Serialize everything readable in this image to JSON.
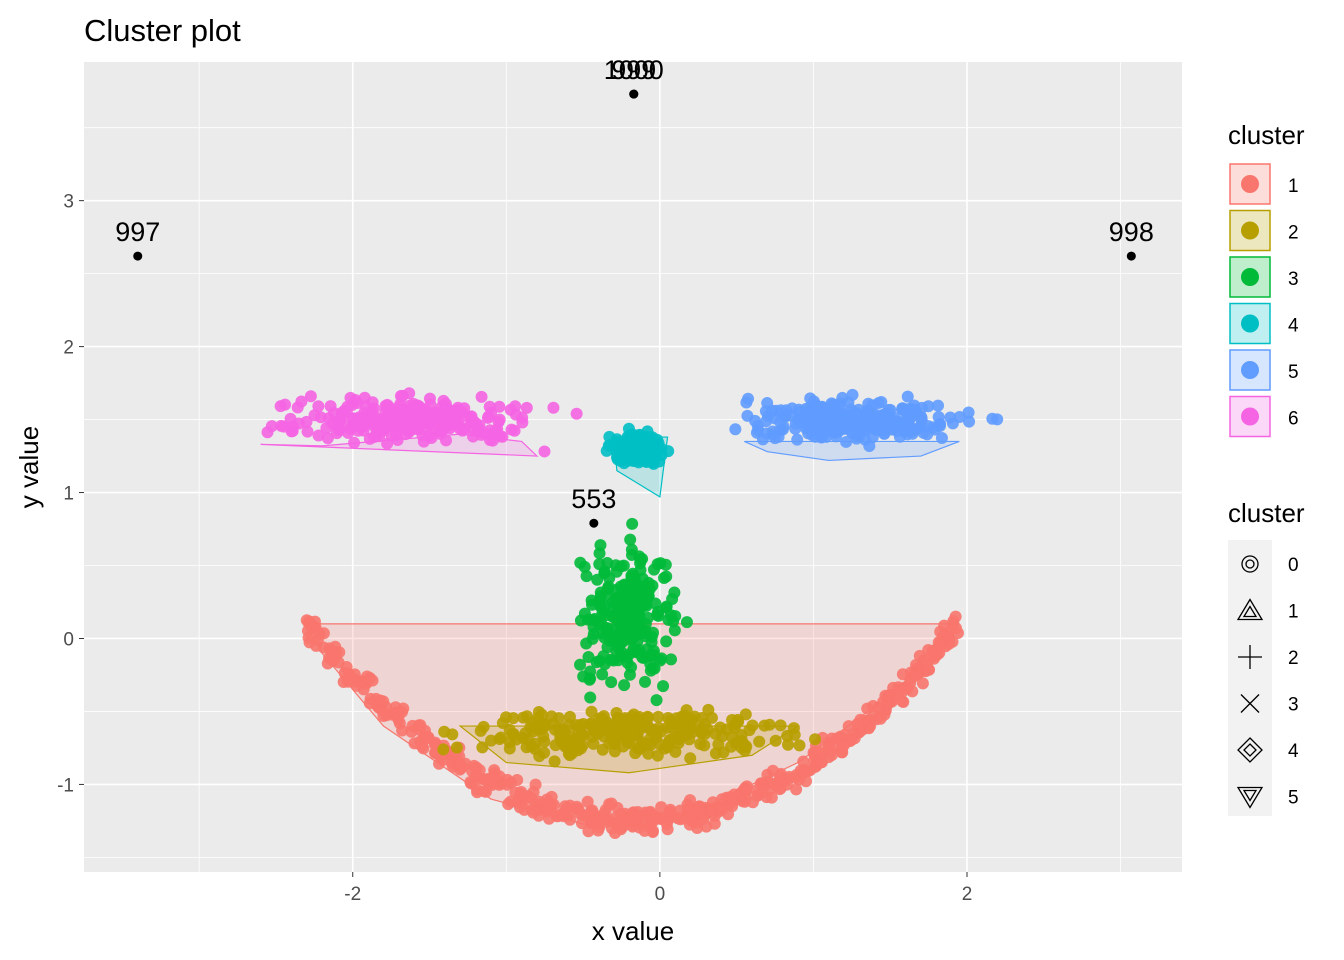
{
  "chart_data": {
    "type": "scatter",
    "title": "Cluster plot",
    "xlabel": "x value",
    "ylabel": "y value",
    "xlim": [
      -3.75,
      3.4
    ],
    "ylim": [
      -1.6,
      3.95
    ],
    "x_ticks": [
      -2,
      0,
      2
    ],
    "y_ticks": [
      -1,
      0,
      1,
      2,
      3
    ],
    "x_tick_labels": [
      "-2",
      "0",
      "2"
    ],
    "y_tick_labels": [
      "-1",
      "0",
      "1",
      "2",
      "3"
    ],
    "grid": true,
    "background": "#ebebeb",
    "legend_position": "right",
    "clusters": [
      {
        "name": "1",
        "color": "#F8766D",
        "shape": "smile",
        "x_range": [
          -2.3,
          1.95
        ],
        "y_center": 0.1,
        "depth": 1.35
      },
      {
        "name": "2",
        "color": "#B79F00",
        "shape": "ellipse",
        "center": [
          -0.2,
          -0.65
        ],
        "radius": [
          1.0,
          0.17
        ]
      },
      {
        "name": "3",
        "color": "#00BA38",
        "shape": "ellipse",
        "center": [
          -0.2,
          0.15
        ],
        "radius": [
          0.3,
          0.45
        ]
      },
      {
        "name": "4",
        "color": "#00BFC4",
        "shape": "ellipse",
        "center": [
          -0.15,
          1.3
        ],
        "radius": [
          0.15,
          0.1
        ]
      },
      {
        "name": "5",
        "color": "#619CFF",
        "shape": "ellipse",
        "center": [
          1.25,
          1.5
        ],
        "radius": [
          0.72,
          0.15
        ]
      },
      {
        "name": "6",
        "color": "#F564E3",
        "shape": "ellipse",
        "center": [
          -1.65,
          1.5
        ],
        "radius": [
          0.8,
          0.15
        ]
      }
    ],
    "hulls": [
      {
        "cluster": "1",
        "points": [
          [
            -2.3,
            0.1
          ],
          [
            1.9,
            0.1
          ],
          [
            1.55,
            -0.35
          ],
          [
            0.9,
            -0.85
          ],
          [
            0.2,
            -1.2
          ],
          [
            -0.4,
            -1.3
          ],
          [
            -1.1,
            -1.1
          ],
          [
            -1.8,
            -0.6
          ],
          [
            -2.2,
            -0.1
          ]
        ]
      },
      {
        "cluster": "2",
        "points": [
          [
            -1.3,
            -0.6
          ],
          [
            0.9,
            -0.6
          ],
          [
            0.6,
            -0.8
          ],
          [
            -0.2,
            -0.92
          ],
          [
            -1.0,
            -0.85
          ]
        ]
      },
      {
        "cluster": "4",
        "points": [
          [
            -0.3,
            1.38
          ],
          [
            0.05,
            1.38
          ],
          [
            0.0,
            0.97
          ],
          [
            -0.28,
            1.15
          ]
        ]
      },
      {
        "cluster": "5",
        "points": [
          [
            0.55,
            1.35
          ],
          [
            1.95,
            1.35
          ],
          [
            1.7,
            1.25
          ],
          [
            1.1,
            1.22
          ],
          [
            0.7,
            1.28
          ]
        ]
      },
      {
        "cluster": "6",
        "points": [
          [
            -2.6,
            1.33
          ],
          [
            -0.8,
            1.25
          ],
          [
            -0.9,
            1.35
          ],
          [
            -1.3,
            1.4
          ],
          [
            -2.2,
            1.32
          ]
        ]
      }
    ],
    "outliers": [
      {
        "label": "997",
        "x": -3.4,
        "y": 2.62
      },
      {
        "label": "998",
        "x": 3.07,
        "y": 2.62
      },
      {
        "label": "999",
        "x": -0.17,
        "y": 3.73
      },
      {
        "label": "1000",
        "x": -0.17,
        "y": 3.73
      },
      {
        "label": "553",
        "x": -0.43,
        "y": 0.79
      }
    ],
    "legend_color": {
      "title": "cluster",
      "entries": [
        "1",
        "2",
        "3",
        "4",
        "5",
        "6"
      ]
    },
    "legend_shape": {
      "title": "cluster",
      "entries": [
        "0",
        "1",
        "2",
        "3",
        "4",
        "5"
      ],
      "symbols": [
        "circle-open",
        "triangle-open",
        "plus",
        "cross",
        "diamond-open",
        "triangle-down-open"
      ]
    }
  }
}
